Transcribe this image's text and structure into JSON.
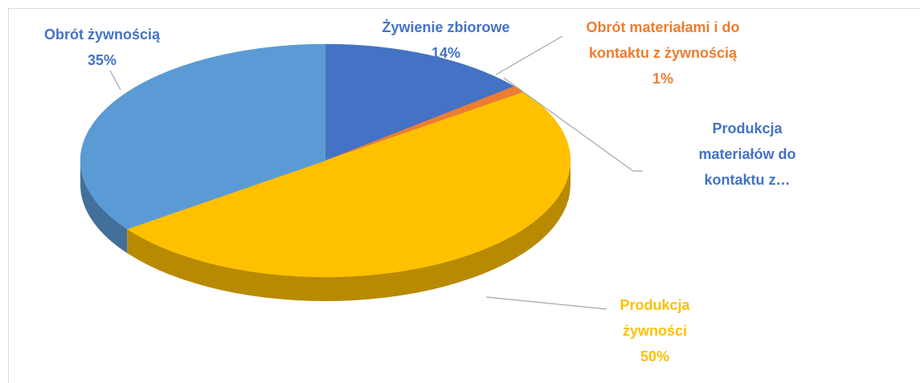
{
  "chart_data": {
    "type": "pie",
    "categories": [
      "Żywienie zbiorowe",
      "Obrót materiałami i do kontaktu z żywnością",
      "Produkcja materiałów do kontaktu z…",
      "Produkcja żywności",
      "Obrót żywnością"
    ],
    "values": [
      14,
      1,
      0,
      50,
      35
    ],
    "value_labels": [
      "14%",
      "1%",
      null,
      "50%",
      "35%"
    ],
    "colors": [
      "#4472c4",
      "#ed7d31",
      "#a5a5a5",
      "#ffc000",
      "#5b9bd5"
    ],
    "label_colors": [
      "#4472c4",
      "#ed7d31",
      "#4472c4",
      "#ffc000",
      "#4472c4"
    ]
  }
}
